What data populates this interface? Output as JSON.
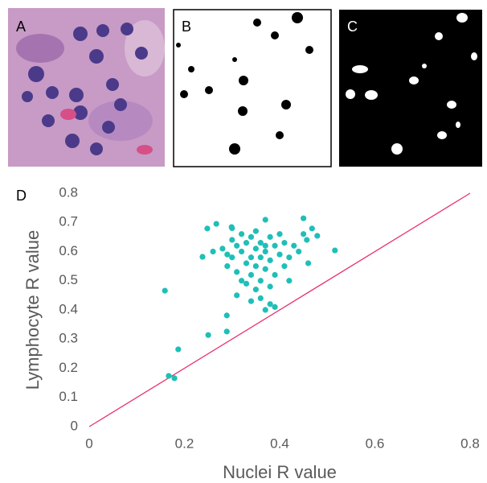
{
  "panel_labels": [
    "A",
    "B",
    "C",
    "D"
  ],
  "chart_data": {
    "type": "scatter",
    "x_label": "Nuclei R value",
    "y_label": "Lymphocyte R value",
    "xlim": [
      0,
      0.8
    ],
    "ylim": [
      0,
      0.8
    ],
    "xticks": [
      0,
      0.2,
      0.4,
      0.6,
      0.8
    ],
    "yticks": [
      0,
      0.1,
      0.2,
      0.3,
      0.4,
      0.5,
      0.6,
      0.7,
      0.8
    ],
    "grid": false,
    "identity_line": true,
    "identity_line_color": "#e8336e",
    "series": [
      {
        "color": "#1fbfb8",
        "x": [
          0.159,
          0.187,
          0.167,
          0.179,
          0.25,
          0.289,
          0.289,
          0.248,
          0.267,
          0.238,
          0.299,
          0.37,
          0.45,
          0.516,
          0.468,
          0.479,
          0.457,
          0.28,
          0.29,
          0.3,
          0.3,
          0.31,
          0.31,
          0.32,
          0.32,
          0.32,
          0.33,
          0.33,
          0.34,
          0.34,
          0.34,
          0.35,
          0.35,
          0.35,
          0.36,
          0.36,
          0.36,
          0.36,
          0.37,
          0.37,
          0.37,
          0.37,
          0.38,
          0.38,
          0.38,
          0.38,
          0.39,
          0.39,
          0.39,
          0.4,
          0.4,
          0.41,
          0.41,
          0.42,
          0.43,
          0.44,
          0.45,
          0.46,
          0.31,
          0.33,
          0.35,
          0.42,
          0.29,
          0.3,
          0.26,
          0.34
        ],
        "y": [
          0.466,
          0.265,
          0.174,
          0.166,
          0.314,
          0.326,
          0.381,
          0.679,
          0.695,
          0.582,
          0.684,
          0.709,
          0.714,
          0.604,
          0.679,
          0.654,
          0.64,
          0.61,
          0.55,
          0.64,
          0.58,
          0.62,
          0.53,
          0.66,
          0.6,
          0.5,
          0.56,
          0.63,
          0.58,
          0.52,
          0.65,
          0.61,
          0.55,
          0.47,
          0.63,
          0.58,
          0.5,
          0.44,
          0.62,
          0.6,
          0.54,
          0.4,
          0.65,
          0.57,
          0.48,
          0.42,
          0.62,
          0.52,
          0.41,
          0.66,
          0.59,
          0.55,
          0.63,
          0.58,
          0.62,
          0.6,
          0.66,
          0.56,
          0.45,
          0.49,
          0.67,
          0.5,
          0.59,
          0.68,
          0.6,
          0.43
        ]
      }
    ]
  }
}
